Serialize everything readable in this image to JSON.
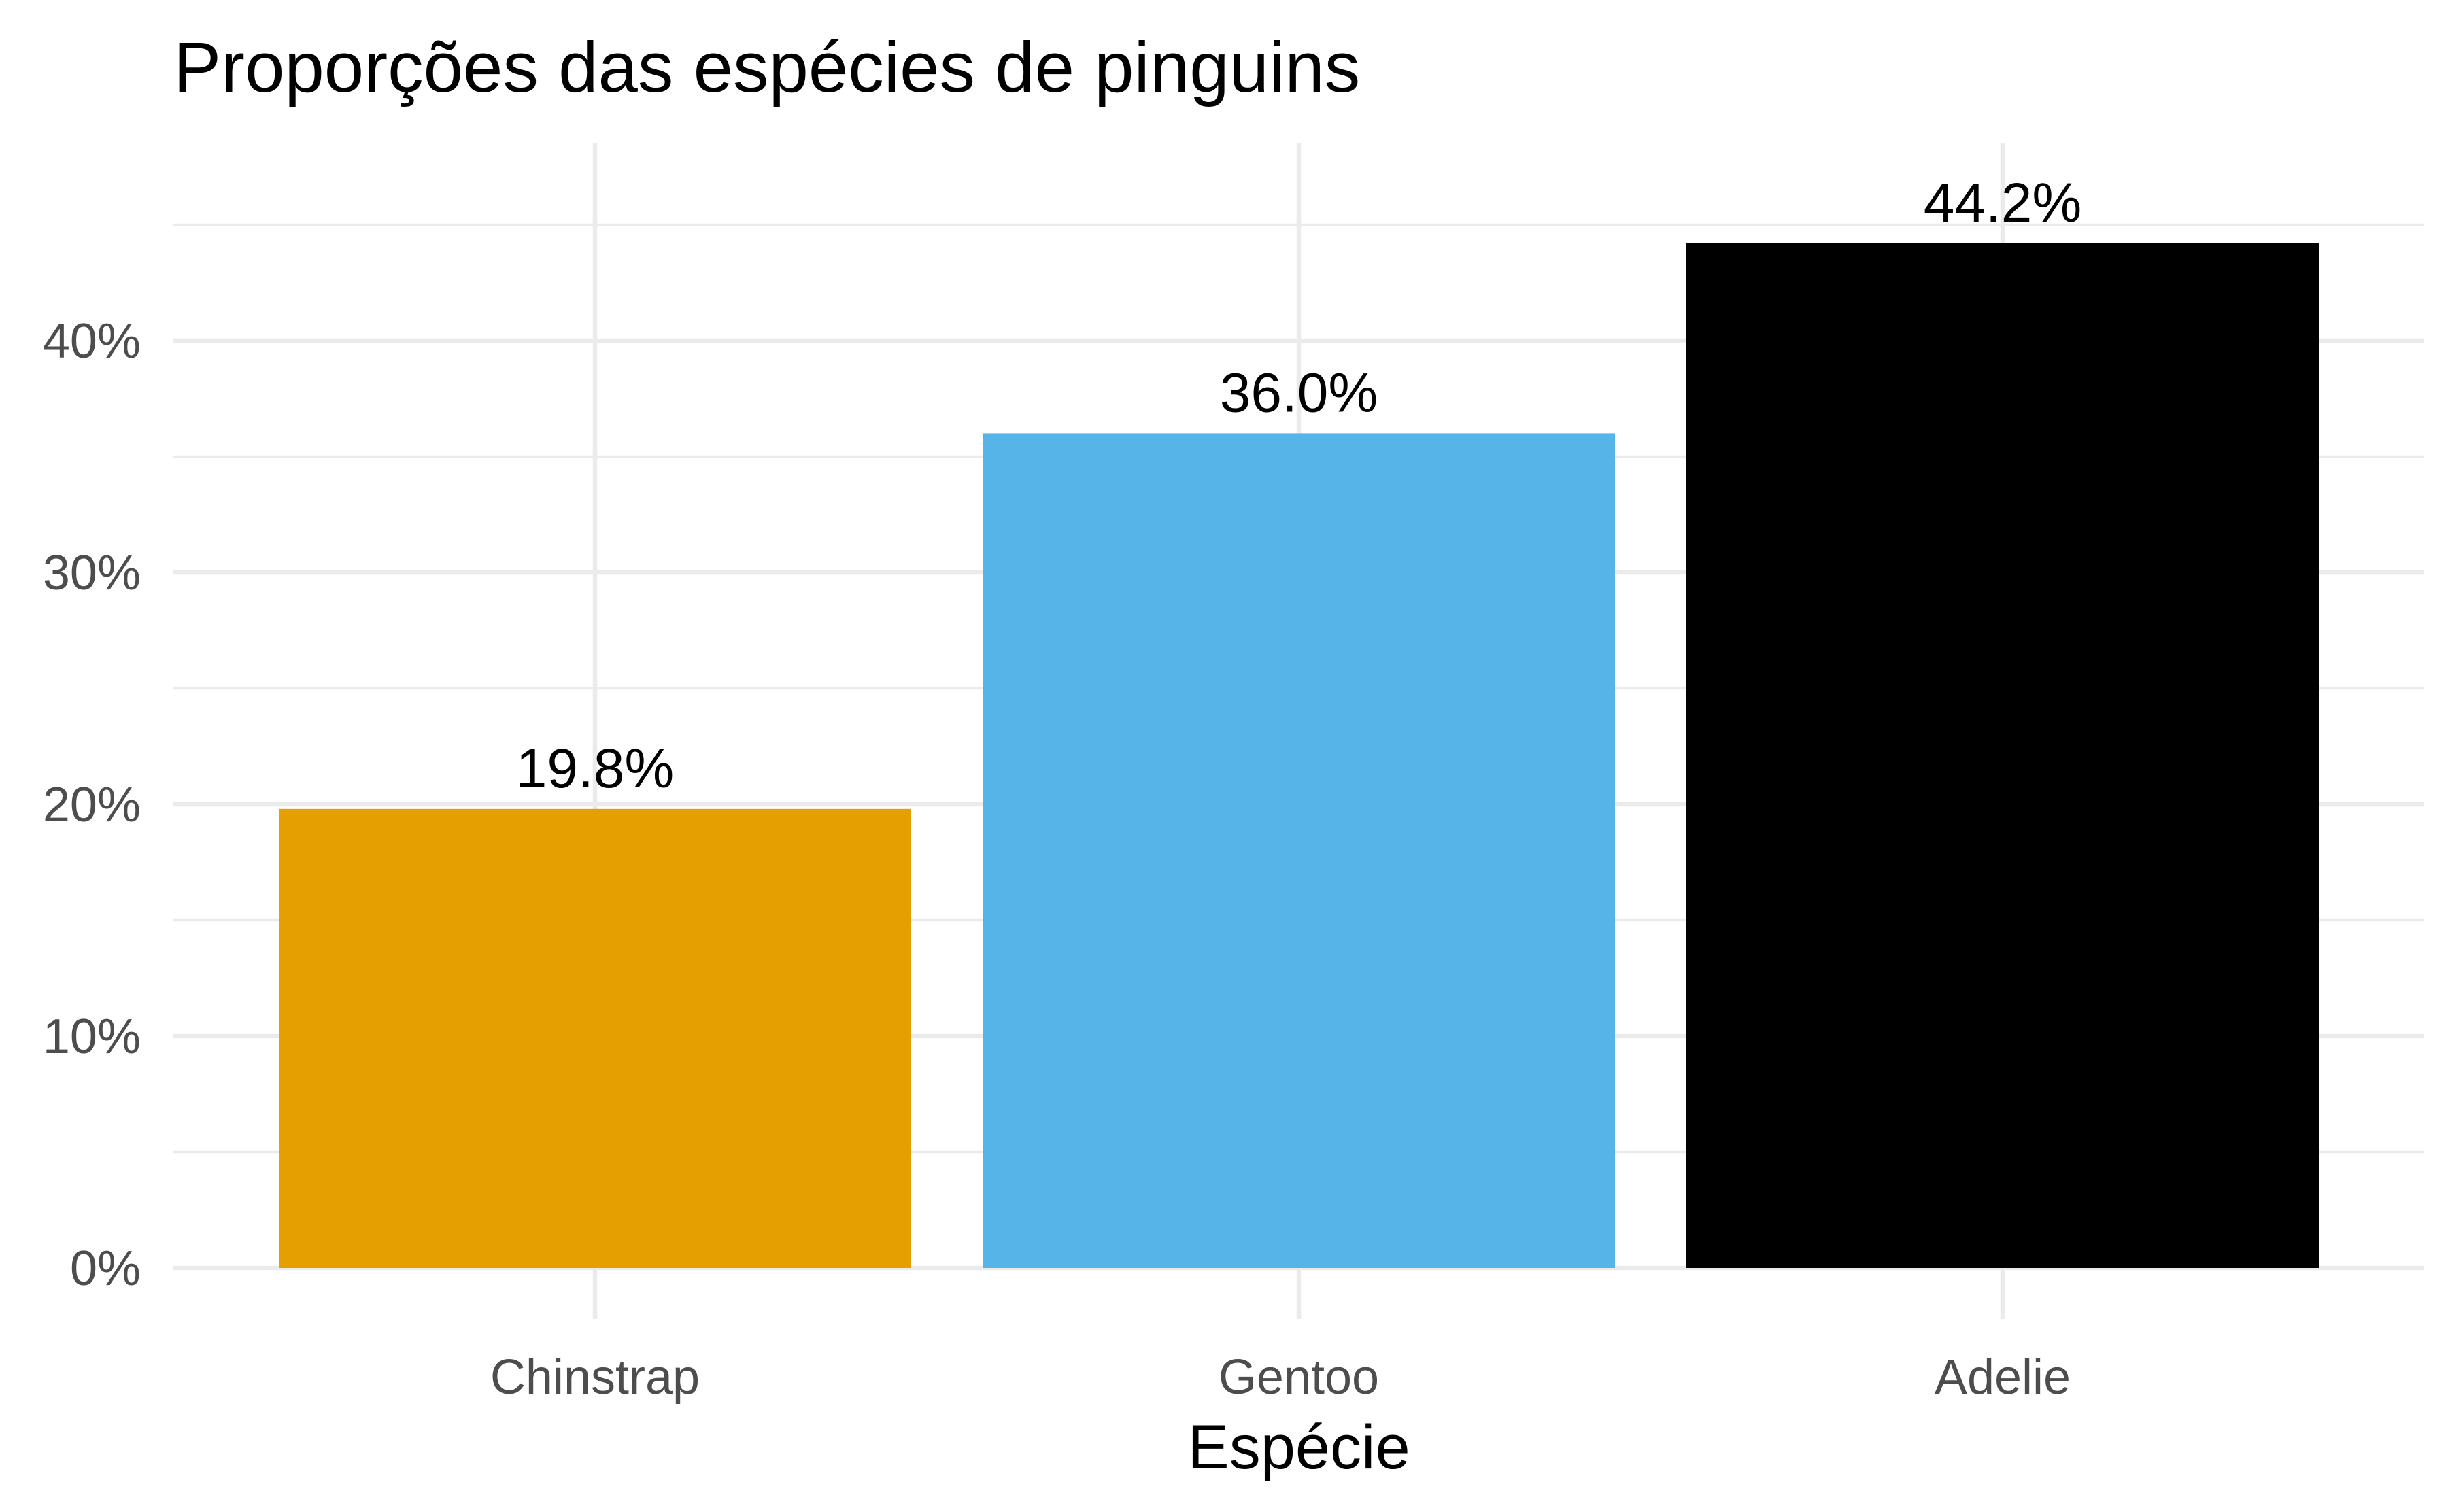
{
  "chart_data": {
    "type": "bar",
    "title": "Proporções das espécies de pinguins",
    "xlabel": "Espécie",
    "ylabel": "",
    "categories": [
      "Chinstrap",
      "Gentoo",
      "Adelie"
    ],
    "values": [
      19.8,
      36.0,
      44.2
    ],
    "value_unit": "%",
    "data_labels": [
      "19.8%",
      "36.0%",
      "44.2%"
    ],
    "colors": [
      "#E69F00",
      "#56B4E9",
      "#000000"
    ],
    "ylim": [
      0,
      47
    ],
    "yticks": [
      0,
      10,
      20,
      30,
      40
    ],
    "ytick_labels": [
      "0%",
      "10%",
      "20%",
      "30%",
      "40%"
    ],
    "grid": true,
    "legend": "none"
  }
}
